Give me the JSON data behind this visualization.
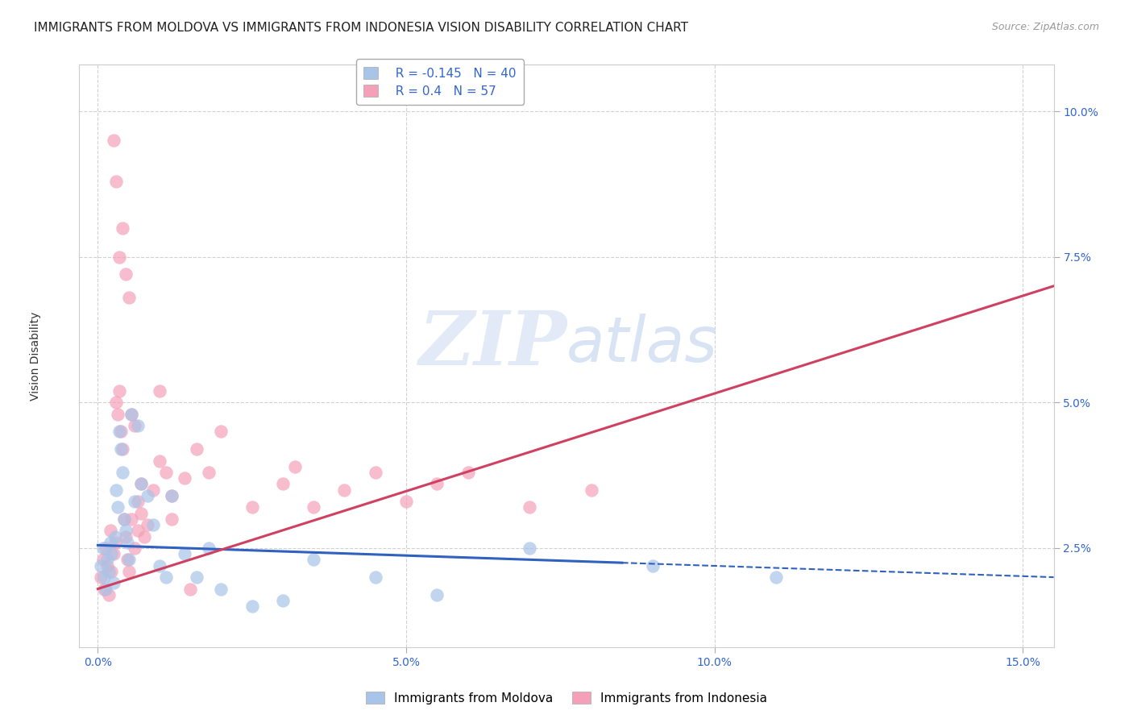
{
  "title": "IMMIGRANTS FROM MOLDOVA VS IMMIGRANTS FROM INDONESIA VISION DISABILITY CORRELATION CHART",
  "source": "Source: ZipAtlas.com",
  "ylabel": "Vision Disability",
  "xlabel_vals": [
    0.0,
    5.0,
    10.0,
    15.0
  ],
  "ylabel_vals": [
    2.5,
    5.0,
    7.5,
    10.0
  ],
  "xlim": [
    -0.3,
    15.5
  ],
  "ylim": [
    0.8,
    10.8
  ],
  "moldova_color": "#a8c4e8",
  "indonesia_color": "#f4a0b8",
  "moldova_R": -0.145,
  "moldova_N": 40,
  "indonesia_R": 0.4,
  "indonesia_N": 57,
  "background_color": "#ffffff",
  "grid_color": "#cccccc",
  "moldova_line_color": "#3060c0",
  "indonesia_line_color": "#d04060",
  "moldova_trend_x0": 0.0,
  "moldova_trend_y0": 2.55,
  "moldova_trend_x1": 15.5,
  "moldova_trend_y1": 2.0,
  "moldova_solid_end_x": 8.5,
  "indonesia_trend_x0": 0.0,
  "indonesia_trend_y0": 1.8,
  "indonesia_trend_x1": 15.5,
  "indonesia_trend_y1": 7.0,
  "moldova_scatter_x": [
    0.05,
    0.08,
    0.1,
    0.12,
    0.15,
    0.18,
    0.2,
    0.22,
    0.25,
    0.28,
    0.3,
    0.32,
    0.35,
    0.38,
    0.4,
    0.42,
    0.45,
    0.48,
    0.5,
    0.55,
    0.6,
    0.65,
    0.7,
    0.8,
    0.9,
    1.0,
    1.1,
    1.2,
    1.4,
    1.6,
    1.8,
    2.0,
    2.5,
    3.0,
    3.5,
    4.5,
    5.5,
    7.0,
    9.0,
    11.0
  ],
  "moldova_scatter_y": [
    2.2,
    2.5,
    2.0,
    1.8,
    2.3,
    2.1,
    2.6,
    2.4,
    1.9,
    2.7,
    3.5,
    3.2,
    4.5,
    4.2,
    3.8,
    3.0,
    2.8,
    2.6,
    2.3,
    4.8,
    3.3,
    4.6,
    3.6,
    3.4,
    2.9,
    2.2,
    2.0,
    3.4,
    2.4,
    2.0,
    2.5,
    1.8,
    1.5,
    1.6,
    2.3,
    2.0,
    1.7,
    2.5,
    2.2,
    2.0
  ],
  "indonesia_scatter_x": [
    0.05,
    0.08,
    0.1,
    0.12,
    0.15,
    0.18,
    0.2,
    0.22,
    0.25,
    0.28,
    0.3,
    0.32,
    0.35,
    0.38,
    0.4,
    0.42,
    0.45,
    0.48,
    0.5,
    0.55,
    0.6,
    0.65,
    0.7,
    0.8,
    0.9,
    1.0,
    1.1,
    1.2,
    1.4,
    1.6,
    1.8,
    2.0,
    2.5,
    3.0,
    3.2,
    3.5,
    4.0,
    4.5,
    5.0,
    5.5,
    6.0,
    7.0,
    8.0,
    0.25,
    0.3,
    0.35,
    0.4,
    0.45,
    0.5,
    0.55,
    0.6,
    0.65,
    0.7,
    0.75,
    1.0,
    1.2,
    1.5
  ],
  "indonesia_scatter_y": [
    2.0,
    2.3,
    1.8,
    2.5,
    2.2,
    1.7,
    2.8,
    2.1,
    2.4,
    2.6,
    5.0,
    4.8,
    5.2,
    4.5,
    4.2,
    3.0,
    2.7,
    2.3,
    2.1,
    4.8,
    4.6,
    3.3,
    3.6,
    2.9,
    3.5,
    4.0,
    3.8,
    3.4,
    3.7,
    4.2,
    3.8,
    4.5,
    3.2,
    3.6,
    3.9,
    3.2,
    3.5,
    3.8,
    3.3,
    3.6,
    3.8,
    3.2,
    3.5,
    9.5,
    8.8,
    7.5,
    8.0,
    7.2,
    6.8,
    3.0,
    2.5,
    2.8,
    3.1,
    2.7,
    5.2,
    3.0,
    1.8
  ],
  "title_fontsize": 11,
  "source_fontsize": 9,
  "label_fontsize": 10,
  "tick_fontsize": 10,
  "legend_fontsize": 11
}
